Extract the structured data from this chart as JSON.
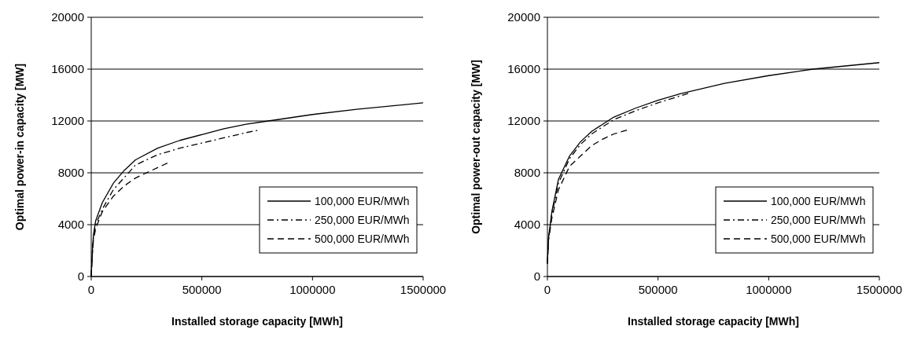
{
  "chart_data": [
    {
      "type": "line",
      "xlabel": "Installed storage capacity [MWh]",
      "ylabel": "Optimal power-in capacity [MW]",
      "xlim": [
        0,
        1500000
      ],
      "xticks": [
        0,
        500000,
        1000000,
        1500000
      ],
      "ylim": [
        0,
        20000
      ],
      "yticks": [
        0,
        4000,
        8000,
        12000,
        16000,
        20000
      ],
      "grid": "y",
      "legend": "bottom right",
      "series": [
        {
          "name": "100,000 EUR/MWh",
          "color": "#000000",
          "line_style": "solid",
          "x": [
            0,
            5000,
            10000,
            20000,
            50000,
            100000,
            150000,
            200000,
            300000,
            400000,
            500000,
            600000,
            700000,
            800000,
            1000000,
            1200000,
            1500000
          ],
          "values": [
            0,
            2000,
            3200,
            4300,
            5700,
            7200,
            8200,
            9000,
            9900,
            10500,
            10950,
            11400,
            11750,
            12000,
            12500,
            12900,
            13400
          ]
        },
        {
          "name": "250,000 EUR/MWh",
          "color": "#000000",
          "line_style": "dashdot",
          "x": [
            0,
            5000,
            10000,
            20000,
            50000,
            100000,
            200000,
            300000,
            400000,
            500000,
            600000,
            700000,
            760000
          ],
          "values": [
            0,
            1800,
            3000,
            4000,
            5200,
            6700,
            8600,
            9400,
            9900,
            10300,
            10700,
            11100,
            11300
          ]
        },
        {
          "name": "500,000 EUR/MWh",
          "color": "#000000",
          "line_style": "dashed",
          "x": [
            0,
            5000,
            10000,
            20000,
            50000,
            100000,
            150000,
            200000,
            250000,
            300000,
            350000
          ],
          "values": [
            0,
            1700,
            2800,
            3700,
            5000,
            6200,
            7000,
            7600,
            8000,
            8400,
            8800
          ]
        }
      ]
    },
    {
      "type": "line",
      "xlabel": "Installed storage capacity [MWh]",
      "ylabel": "Optimal power-out capacity [MW]",
      "xlim": [
        0,
        1500000
      ],
      "xticks": [
        0,
        500000,
        1000000,
        1500000
      ],
      "ylim": [
        0,
        20000
      ],
      "yticks": [
        0,
        4000,
        8000,
        12000,
        16000,
        20000
      ],
      "grid": "y",
      "legend": "bottom right",
      "series": [
        {
          "name": "100,000 EUR/MWh",
          "color": "#000000",
          "line_style": "solid",
          "x": [
            0,
            5000,
            20000,
            50000,
            100000,
            150000,
            200000,
            300000,
            400000,
            500000,
            600000,
            800000,
            1000000,
            1200000,
            1500000
          ],
          "values": [
            1000,
            3000,
            5000,
            7500,
            9300,
            10400,
            11200,
            12300,
            13000,
            13600,
            14100,
            14900,
            15500,
            16000,
            16500
          ]
        },
        {
          "name": "250,000 EUR/MWh",
          "color": "#000000",
          "line_style": "dashdot",
          "x": [
            0,
            5000,
            20000,
            50000,
            100000,
            150000,
            200000,
            300000,
            400000,
            500000,
            650000
          ],
          "values": [
            1000,
            2900,
            4800,
            7200,
            9100,
            10200,
            11000,
            12100,
            12800,
            13400,
            14200
          ]
        },
        {
          "name": "500,000 EUR/MWh",
          "color": "#000000",
          "line_style": "dashed",
          "x": [
            0,
            5000,
            20000,
            50000,
            100000,
            150000,
            200000,
            250000,
            300000,
            360000
          ],
          "values": [
            1000,
            2800,
            4500,
            6700,
            8500,
            9300,
            10100,
            10600,
            11000,
            11300
          ]
        }
      ]
    }
  ]
}
